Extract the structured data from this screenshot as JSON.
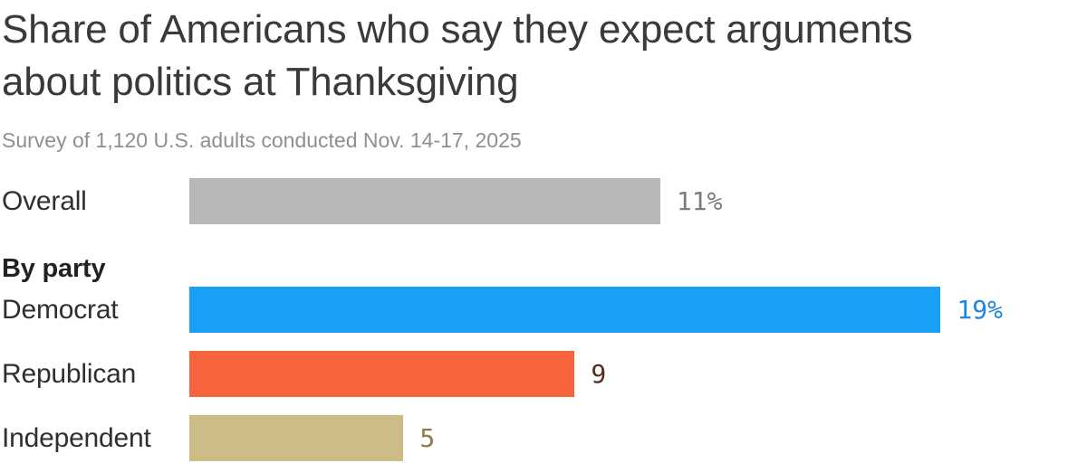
{
  "chart_data": {
    "type": "bar",
    "orientation": "horizontal",
    "title": "Share of Americans who say they expect arguments about politics at Thanksgiving",
    "subtitle": "Survey of 1,120 U.S. adults conducted Nov. 14-17, 2025",
    "categories": [
      "Overall",
      "Democrat",
      "Republican",
      "Independent"
    ],
    "values": [
      11,
      19,
      9,
      5
    ],
    "value_labels": [
      "11%",
      "19%",
      "9",
      "5"
    ],
    "group_header": {
      "label": "By party",
      "before_category": "Democrat"
    },
    "xlim": [
      0,
      19
    ],
    "bar_colors": [
      "#b8b6b6",
      "#18a0f5",
      "#f6633c",
      "#cbbd85"
    ],
    "value_label_colors": [
      "#7d7a7a",
      "#1d86e0",
      "#572c1d",
      "#8d7c48"
    ],
    "axis": "none",
    "grid": false,
    "legend": false,
    "colors": {
      "title": "#3a3a3a",
      "subtitle": "#8f8f8f",
      "category_label": "#2f2f2f",
      "group_header": "#222222",
      "background": "#ffffff"
    }
  }
}
